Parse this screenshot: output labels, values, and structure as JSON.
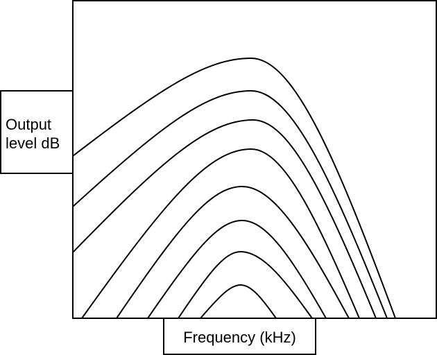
{
  "diagram": {
    "y_axis_label": "Output level dB",
    "x_axis_label": "Frequency (kHz)",
    "curve_count": 8,
    "line_color": "#000000",
    "background": "#ffffff"
  }
}
